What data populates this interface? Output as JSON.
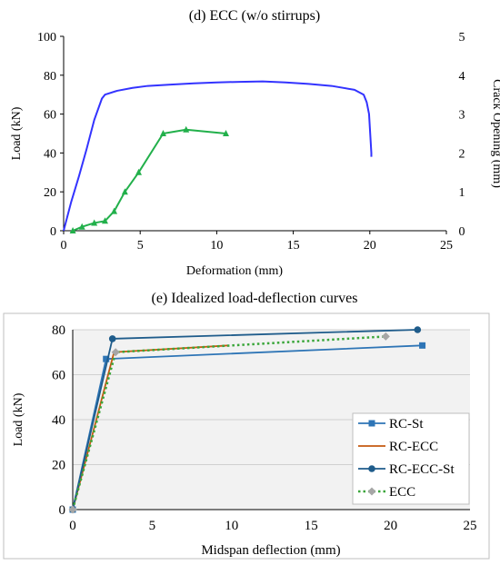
{
  "chart_data": [
    {
      "type": "line",
      "title": "(d) ECC (w/o stirrups)",
      "xlabel": "Deformation (mm)",
      "ylabel": "Load (kN)",
      "y2label": "Crack Opening (mm)",
      "xlim": [
        0,
        25
      ],
      "ylim": [
        0,
        100
      ],
      "y2lim": [
        0,
        5
      ],
      "xticks": [
        "0",
        "5",
        "10",
        "15",
        "20",
        "25"
      ],
      "yticks": [
        "0",
        "20",
        "40",
        "60",
        "80",
        "100"
      ],
      "y2ticks": [
        "0",
        "1",
        "2",
        "3",
        "4",
        "5"
      ],
      "grid": false,
      "legend": "none",
      "series": [
        {
          "axis": "left",
          "color": "#3333ff",
          "marker": "none",
          "x": [
            0,
            0.5,
            1.0,
            1.5,
            2.0,
            2.5,
            2.7,
            3.5,
            4.5,
            5.5,
            7,
            8.5,
            10,
            11.5,
            13,
            14.5,
            16,
            17.5,
            19,
            19.6,
            19.8,
            19.95,
            20.1,
            20.1
          ],
          "y": [
            0,
            15,
            28,
            42,
            57,
            68,
            70,
            72,
            73.5,
            74.5,
            75.2,
            75.8,
            76.3,
            76.6,
            76.8,
            76.3,
            75.5,
            74.5,
            72.5,
            70,
            66,
            60,
            40,
            38
          ]
        },
        {
          "axis": "right",
          "color": "#22b04b",
          "marker": "triangle",
          "x": [
            0.6,
            1.2,
            2.0,
            2.7,
            3.3,
            4.0,
            4.9,
            6.5,
            8.0,
            10.6
          ],
          "y": [
            0.0,
            0.1,
            0.2,
            0.25,
            0.5,
            1.0,
            1.5,
            2.5,
            2.6,
            2.5
          ]
        }
      ]
    },
    {
      "type": "line",
      "title": "(e) Idealized load-deflection curves",
      "xlabel": "Midspan deflection (mm)",
      "ylabel": "Load (kN)",
      "xlim": [
        0,
        25
      ],
      "ylim": [
        0,
        80
      ],
      "xticks": [
        "0",
        "5",
        "10",
        "15",
        "20",
        "25"
      ],
      "yticks": [
        "0",
        "20",
        "40",
        "60",
        "80"
      ],
      "grid": true,
      "plot_background": "#f2f2f2",
      "legend": "right",
      "series": [
        {
          "name": "RC-St",
          "color": "#2e75b6",
          "marker": "square",
          "dash": "solid",
          "x": [
            0,
            2.1,
            22
          ],
          "y": [
            0,
            67,
            73
          ]
        },
        {
          "name": "RC-ECC",
          "color": "#c55a11",
          "marker": "none",
          "dash": "solid",
          "x": [
            0,
            2.6,
            9.8
          ],
          "y": [
            0,
            70,
            73
          ]
        },
        {
          "name": "RC-ECC-St",
          "color": "#1f5c8b",
          "marker": "circle",
          "dash": "solid",
          "x": [
            0,
            2.5,
            21.7
          ],
          "y": [
            0,
            76,
            80
          ]
        },
        {
          "name": "ECC",
          "color": "#3aa63a",
          "marker": "diamond",
          "marker_color": "#a6a6a6",
          "dash": "dotted",
          "x": [
            0,
            2.7,
            19.7
          ],
          "y": [
            0,
            70,
            77
          ]
        }
      ]
    }
  ]
}
